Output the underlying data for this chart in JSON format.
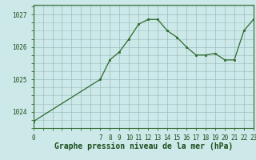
{
  "x": [
    0,
    7,
    8,
    9,
    10,
    11,
    12,
    13,
    14,
    15,
    16,
    17,
    18,
    19,
    20,
    21,
    22,
    23
  ],
  "y": [
    1023.7,
    1025.0,
    1025.6,
    1025.85,
    1026.25,
    1026.7,
    1026.85,
    1026.85,
    1026.5,
    1026.3,
    1026.0,
    1025.75,
    1025.75,
    1025.8,
    1025.6,
    1025.6,
    1026.5,
    1026.85
  ],
  "xlabel": "Graphe pression niveau de la mer (hPa)",
  "yticks": [
    1024,
    1025,
    1026,
    1027
  ],
  "xticks": [
    0,
    7,
    8,
    9,
    10,
    11,
    12,
    13,
    14,
    15,
    16,
    17,
    18,
    19,
    20,
    21,
    22,
    23
  ],
  "xtick_labels": [
    "0",
    "7",
    "8",
    "9",
    "10",
    "11",
    "12",
    "13",
    "14",
    "15",
    "16",
    "17",
    "18",
    "19",
    "20",
    "21",
    "22",
    "23"
  ],
  "grid_xticks": [
    0,
    1,
    2,
    3,
    4,
    5,
    6,
    7,
    8,
    9,
    10,
    11,
    12,
    13,
    14,
    15,
    16,
    17,
    18,
    19,
    20,
    21,
    22,
    23
  ],
  "ylim": [
    1023.5,
    1027.3
  ],
  "xlim": [
    0,
    23
  ],
  "line_color": "#2d6a2d",
  "marker_color": "#2d6a2d",
  "bg_color": "#cce8e8",
  "grid_color": "#9bbfbf",
  "axis_color": "#2d6a2d",
  "label_color": "#1a4d1a",
  "tick_fontsize": 5.5,
  "xlabel_fontsize": 7.0
}
